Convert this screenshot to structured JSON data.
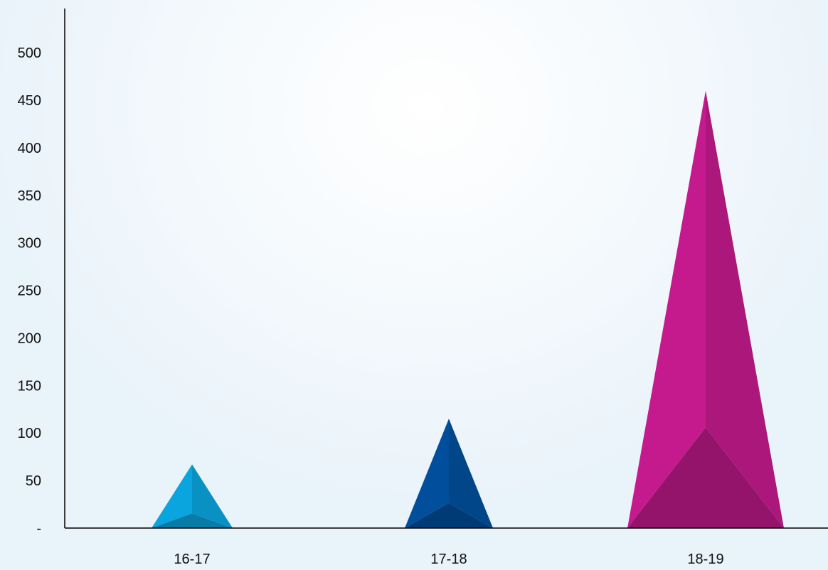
{
  "chart_data": {
    "type": "bar",
    "bar_shape": "pyramid",
    "categories": [
      "16-17",
      "17-18",
      "18-19"
    ],
    "values": [
      67,
      115,
      460
    ],
    "colors": [
      "#0aa5df",
      "#014f9c",
      "#c41a8d"
    ],
    "yticks": [
      0,
      50,
      100,
      150,
      200,
      250,
      300,
      350,
      400,
      450,
      500
    ],
    "ytick_labels": [
      "-",
      "50",
      "100",
      "150",
      "200",
      "250",
      "300",
      "350",
      "400",
      "450",
      "500"
    ],
    "ylim": [
      0,
      545
    ],
    "grid": false,
    "title": "",
    "xlabel": "",
    "ylabel": ""
  }
}
